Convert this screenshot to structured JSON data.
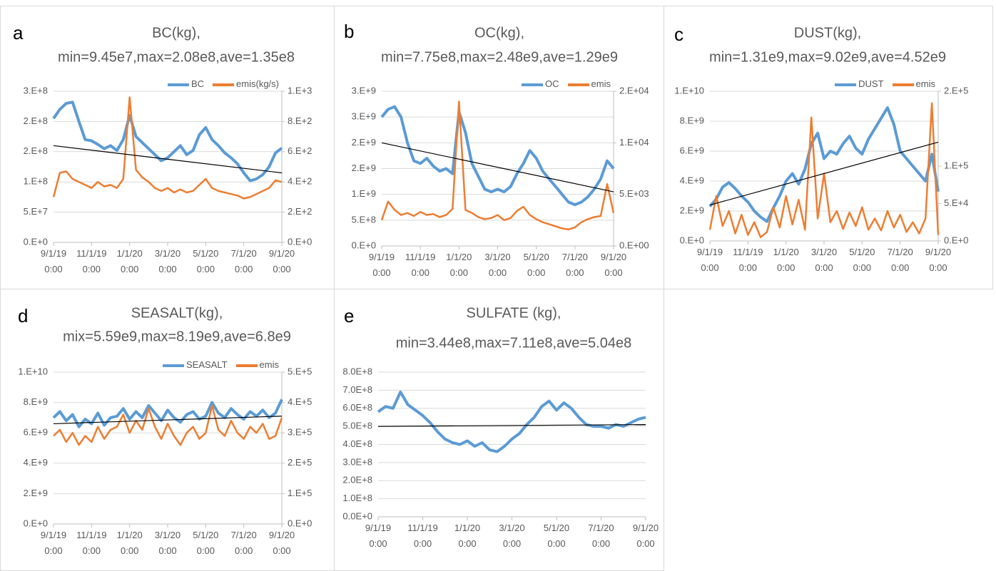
{
  "chart_data": [
    {
      "type": "line",
      "panel": "a",
      "title": "BC(kg),",
      "subtitle": "min=9.45e7,max=2.08e8,ave=1.35e8",
      "categories": [
        "9/1/19 0:00",
        null,
        null,
        null,
        null,
        null,
        "11/1/19 0:00",
        null,
        null,
        null,
        null,
        null,
        "1/1/20 0:00",
        null,
        null,
        null,
        null,
        null,
        "3/1/20 0:00",
        null,
        null,
        null,
        null,
        null,
        "5/1/20 0:00",
        null,
        null,
        null,
        null,
        null,
        "7/1/20 0:00",
        null,
        null,
        null,
        null,
        null,
        "9/1/20 0:00"
      ],
      "series": [
        {
          "name": "BC",
          "color": "#5b9bd5",
          "values": [
            205000000.0,
            220000000.0,
            230000000.0,
            232000000.0,
            200000000.0,
            170000000.0,
            168000000.0,
            162000000.0,
            155000000.0,
            160000000.0,
            152000000.0,
            170000000.0,
            210000000.0,
            175000000.0,
            165000000.0,
            155000000.0,
            145000000.0,
            135000000.0,
            140000000.0,
            150000000.0,
            160000000.0,
            145000000.0,
            152000000.0,
            178000000.0,
            190000000.0,
            170000000.0,
            160000000.0,
            148000000.0,
            140000000.0,
            130000000.0,
            115000000.0,
            102000000.0,
            105000000.0,
            112000000.0,
            125000000.0,
            148000000.0,
            156000000.0
          ]
        },
        {
          "name": "emis(kg/s)",
          "color": "#ed7d31",
          "axis": "y2",
          "values": [
            300,
            460,
            470,
            420,
            400,
            380,
            360,
            400,
            370,
            380,
            360,
            420,
            960,
            480,
            430,
            400,
            360,
            340,
            360,
            330,
            350,
            330,
            340,
            380,
            420,
            360,
            340,
            330,
            320,
            310,
            290,
            300,
            320,
            340,
            360,
            410,
            400
          ]
        }
      ],
      "trend": [
        160000000.0,
        115000000.0
      ],
      "trend_color": "#000000",
      "ylim": [
        0,
        250000000.0
      ],
      "yticks": [
        {
          "value": 0,
          "label": "0.E+0"
        },
        {
          "value": 50000000.0,
          "label": "5.E+7"
        },
        {
          "value": 100000000.0,
          "label": "1.E+8"
        },
        {
          "value": 150000000.0,
          "label": "2.E+8"
        },
        {
          "value": 200000000.0,
          "label": "2.E+8"
        },
        {
          "value": 250000000.0,
          "label": "3.E+8"
        }
      ],
      "y2lim": [
        0,
        1000
      ],
      "y2ticks": [
        {
          "value": 0,
          "label": "0.E+0"
        },
        {
          "value": 200,
          "label": "2.E+2"
        },
        {
          "value": 400,
          "label": "4.E+2"
        },
        {
          "value": 600,
          "label": "6.E+2"
        },
        {
          "value": 800,
          "label": "8.E+2"
        },
        {
          "value": 1000,
          "label": "1.E+3"
        }
      ],
      "grid": true,
      "legend": "upper right"
    },
    {
      "type": "line",
      "panel": "b",
      "title": "OC(kg),",
      "subtitle": "min=7.75e8,max=2.48e9,ave=1.29e9",
      "categories": [
        "9/1/19 0:00",
        null,
        null,
        null,
        null,
        null,
        "11/1/19 0:00",
        null,
        null,
        null,
        null,
        null,
        "1/1/20 0:00",
        null,
        null,
        null,
        null,
        null,
        "3/1/20 0:00",
        null,
        null,
        null,
        null,
        null,
        "5/1/20 0:00",
        null,
        null,
        null,
        null,
        null,
        "7/1/20 0:00",
        null,
        null,
        null,
        null,
        null,
        "9/1/20 0:00"
      ],
      "series": [
        {
          "name": "OC",
          "color": "#5b9bd5",
          "values": [
            2500000000.0,
            2650000000.0,
            2700000000.0,
            2500000000.0,
            2000000000.0,
            1650000000.0,
            1600000000.0,
            1700000000.0,
            1550000000.0,
            1450000000.0,
            1500000000.0,
            1400000000.0,
            2600000000.0,
            2200000000.0,
            1600000000.0,
            1350000000.0,
            1100000000.0,
            1050000000.0,
            1100000000.0,
            1050000000.0,
            1150000000.0,
            1400000000.0,
            1600000000.0,
            1850000000.0,
            1700000000.0,
            1450000000.0,
            1300000000.0,
            1150000000.0,
            1000000000.0,
            850000000.0,
            800000000.0,
            850000000.0,
            950000000.0,
            1100000000.0,
            1300000000.0,
            1650000000.0,
            1500000000.0
          ]
        },
        {
          "name": "emis",
          "color": "#ed7d31",
          "axis": "y2",
          "values": [
            2500,
            4300,
            3500,
            3000,
            3200,
            2900,
            3300,
            3000,
            3100,
            2800,
            3000,
            3600,
            14000,
            3500,
            3200,
            2800,
            2600,
            2700,
            3000,
            2500,
            2700,
            3400,
            3800,
            3000,
            2600,
            2300,
            2100,
            1900,
            1700,
            1600,
            1800,
            2300,
            2600,
            2800,
            2900,
            6000,
            3200
          ]
        }
      ],
      "trend": [
        2000000000.0,
        1050000000.0
      ],
      "trend_color": "#000000",
      "ylim": [
        0,
        3000000000.0
      ],
      "yticks": [
        {
          "value": 0,
          "label": "0.E+0"
        },
        {
          "value": 500000000.0,
          "label": "5.E+8"
        },
        {
          "value": 1000000000.0,
          "label": "1.E+9"
        },
        {
          "value": 1500000000.0,
          "label": "2.E+9"
        },
        {
          "value": 2000000000.0,
          "label": "2.E+9"
        },
        {
          "value": 2500000000.0,
          "label": "3.E+9"
        },
        {
          "value": 3000000000.0,
          "label": "3.E+9"
        }
      ],
      "y2lim": [
        0,
        15000
      ],
      "y2ticks": [
        {
          "value": 0,
          "label": "0.E+00"
        },
        {
          "value": 5000,
          "label": "5.E+03"
        },
        {
          "value": 10000,
          "label": "1.E+04"
        },
        {
          "value": 15000,
          "label": "2.E+04"
        }
      ],
      "grid": true,
      "legend": "upper right"
    },
    {
      "type": "line",
      "panel": "c",
      "title": "DUST(kg),",
      "subtitle": "min=1.31e9,max=9.02e9,ave=4.52e9",
      "categories": [
        "9/1/19 0:00",
        null,
        null,
        null,
        null,
        null,
        "11/1/19 0:00",
        null,
        null,
        null,
        null,
        null,
        "1/1/20 0:00",
        null,
        null,
        null,
        null,
        null,
        "3/1/20 0:00",
        null,
        null,
        null,
        null,
        null,
        "5/1/20 0:00",
        null,
        null,
        null,
        null,
        null,
        "7/1/20 0:00",
        null,
        null,
        null,
        null,
        null,
        "9/1/20 0:00"
      ],
      "series": [
        {
          "name": "DUST",
          "color": "#5b9bd5",
          "values": [
            2300000000.0,
            2800000000.0,
            3600000000.0,
            3900000000.0,
            3500000000.0,
            3000000000.0,
            2600000000.0,
            2000000000.0,
            1600000000.0,
            1300000000.0,
            2200000000.0,
            3000000000.0,
            4000000000.0,
            4500000000.0,
            3800000000.0,
            4800000000.0,
            6500000000.0,
            7200000000.0,
            5500000000.0,
            6000000000.0,
            5800000000.0,
            6500000000.0,
            7000000000.0,
            6200000000.0,
            5800000000.0,
            6800000000.0,
            7500000000.0,
            8200000000.0,
            8900000000.0,
            7800000000.0,
            6000000000.0,
            5500000000.0,
            5000000000.0,
            4500000000.0,
            4000000000.0,
            5800000000.0,
            3300000000.0
          ]
        },
        {
          "name": "emis",
          "color": "#ed7d31",
          "axis": "y2",
          "values": [
            15000.0,
            60000.0,
            20000.0,
            40000.0,
            10000.0,
            35000.0,
            8000.0,
            25000.0,
            5000.0,
            12000.0,
            45000.0,
            18000.0,
            60000.0,
            22000.0,
            55000.0,
            15000.0,
            165000.0,
            30000.0,
            90000.0,
            25000.0,
            40000.0,
            16000.0,
            38000.0,
            20000.0,
            45000.0,
            15000.0,
            30000.0,
            14000.0,
            40000.0,
            18000.0,
            35000.0,
            12000.0,
            25000.0,
            10000.0,
            30000.0,
            184000.0,
            8000.0
          ]
        }
      ],
      "trend": [
        2400000000.0,
        6600000000.0
      ],
      "trend_color": "#000000",
      "ylim": [
        0,
        10000000000.0
      ],
      "yticks": [
        {
          "value": 0,
          "label": "0.E+0"
        },
        {
          "value": 2000000000.0,
          "label": "2.E+9"
        },
        {
          "value": 4000000000.0,
          "label": "4.E+9"
        },
        {
          "value": 6000000000.0,
          "label": "6.E+9"
        },
        {
          "value": 8000000000.0,
          "label": "8.E+9"
        },
        {
          "value": 10000000000.0,
          "label": "1.E+10"
        }
      ],
      "y2lim": [
        0,
        200000.0
      ],
      "y2ticks": [
        {
          "value": 0,
          "label": "0.E+0"
        },
        {
          "value": 50000.0,
          "label": "5.E+4"
        },
        {
          "value": 100000.0,
          "label": "1.E+5"
        },
        {
          "value": 200000.0,
          "label": "2.E+5"
        }
      ],
      "grid": true,
      "legend": "upper right"
    },
    {
      "type": "line",
      "panel": "d",
      "title": "SEASALT(kg),",
      "subtitle": "mix=5.59e9,max=8.19e9,ave=6.8e9",
      "categories": [
        "9/1/19 0:00",
        null,
        null,
        null,
        null,
        null,
        "11/1/19 0:00",
        null,
        null,
        null,
        null,
        null,
        "1/1/20 0:00",
        null,
        null,
        null,
        null,
        null,
        "3/1/20 0:00",
        null,
        null,
        null,
        null,
        null,
        "5/1/20 0:00",
        null,
        null,
        null,
        null,
        null,
        "7/1/20 0:00",
        null,
        null,
        null,
        null,
        null,
        "9/1/20 0:00"
      ],
      "series": [
        {
          "name": "SEASALT",
          "color": "#5b9bd5",
          "values": [
            7000000000.0,
            7400000000.0,
            6800000000.0,
            7200000000.0,
            6400000000.0,
            6900000000.0,
            6600000000.0,
            7300000000.0,
            6500000000.0,
            7000000000.0,
            7100000000.0,
            7600000000.0,
            6900000000.0,
            7400000000.0,
            7000000000.0,
            7800000000.0,
            7300000000.0,
            6800000000.0,
            7500000000.0,
            7000000000.0,
            6700000000.0,
            7200000000.0,
            7400000000.0,
            6900000000.0,
            7100000000.0,
            8000000000.0,
            7300000000.0,
            7000000000.0,
            7600000000.0,
            7200000000.0,
            6900000000.0,
            7400000000.0,
            7100000000.0,
            7500000000.0,
            7000000000.0,
            7300000000.0,
            8200000000.0
          ]
        },
        {
          "name": "emis",
          "color": "#ed7d31",
          "axis": "y2",
          "values": [
            290000.0,
            310000.0,
            270000.0,
            300000.0,
            260000.0,
            290000.0,
            270000.0,
            320000.0,
            280000.0,
            310000.0,
            320000.0,
            360000.0,
            300000.0,
            340000.0,
            310000.0,
            380000.0,
            320000.0,
            280000.0,
            330000.0,
            290000.0,
            260000.0,
            300000.0,
            320000.0,
            280000.0,
            300000.0,
            390000.0,
            310000.0,
            290000.0,
            340000.0,
            300000.0,
            280000.0,
            320000.0,
            300000.0,
            330000.0,
            280000.0,
            290000.0,
            350000.0
          ]
        }
      ],
      "trend": [
        6600000000.0,
        7100000000.0
      ],
      "trend_color": "#000000",
      "ylim": [
        0,
        10000000000.0
      ],
      "yticks": [
        {
          "value": 0,
          "label": "0.E+0"
        },
        {
          "value": 2000000000.0,
          "label": "2.E+9"
        },
        {
          "value": 4000000000.0,
          "label": "4.E+9"
        },
        {
          "value": 6000000000.0,
          "label": "6.E+9"
        },
        {
          "value": 8000000000.0,
          "label": "8.E+9"
        },
        {
          "value": 10000000000.0,
          "label": "1.E+10"
        }
      ],
      "y2lim": [
        0,
        500000.0
      ],
      "y2ticks": [
        {
          "value": 0,
          "label": "0.E+0"
        },
        {
          "value": 100000.0,
          "label": "1.E+5"
        },
        {
          "value": 200000.0,
          "label": "2.E+5"
        },
        {
          "value": 300000.0,
          "label": "3.E+5"
        },
        {
          "value": 400000.0,
          "label": "4.E+5"
        },
        {
          "value": 500000.0,
          "label": "5.E+5"
        }
      ],
      "grid": true,
      "legend": "upper right"
    },
    {
      "type": "line",
      "panel": "e",
      "title": "SULFATE (kg),",
      "subtitle": "min=3.44e8,max=7.11e8,ave=5.04e8",
      "categories": [
        "9/1/19 0:00",
        null,
        null,
        null,
        null,
        null,
        "11/1/19 0:00",
        null,
        null,
        null,
        null,
        null,
        "1/1/20 0:00",
        null,
        null,
        null,
        null,
        null,
        "3/1/20 0:00",
        null,
        null,
        null,
        null,
        null,
        "5/1/20 0:00",
        null,
        null,
        null,
        null,
        null,
        "7/1/20 0:00",
        null,
        null,
        null,
        null,
        null,
        "9/1/20 0:00"
      ],
      "series": [
        {
          "color": "#5b9bd5",
          "values": [
            580000000.0,
            610000000.0,
            600000000.0,
            690000000.0,
            620000000.0,
            590000000.0,
            560000000.0,
            520000000.0,
            470000000.0,
            430000000.0,
            410000000.0,
            400000000.0,
            420000000.0,
            390000000.0,
            410000000.0,
            370000000.0,
            360000000.0,
            390000000.0,
            430000000.0,
            460000000.0,
            510000000.0,
            550000000.0,
            610000000.0,
            640000000.0,
            590000000.0,
            630000000.0,
            600000000.0,
            550000000.0,
            510000000.0,
            500000000.0,
            500000000.0,
            490000000.0,
            510000000.0,
            500000000.0,
            520000000.0,
            540000000.0,
            550000000.0
          ]
        }
      ],
      "trend": [
        500000000.0,
        510000000.0
      ],
      "trend_color": "#000000",
      "ylim": [
        0,
        800000000.0
      ],
      "yticks": [
        {
          "value": 0,
          "label": "0.0E+0"
        },
        {
          "value": 100000000.0,
          "label": "1.0E+8"
        },
        {
          "value": 200000000.0,
          "label": "2.0E+8"
        },
        {
          "value": 300000000.0,
          "label": "3.0E+8"
        },
        {
          "value": 400000000.0,
          "label": "4.0E+8"
        },
        {
          "value": 500000000.0,
          "label": "5.0E+8"
        },
        {
          "value": 600000000.0,
          "label": "6.0E+8"
        },
        {
          "value": 700000000.0,
          "label": "7.0E+8"
        },
        {
          "value": 800000000.0,
          "label": "8.0E+8"
        }
      ],
      "grid": true
    }
  ]
}
